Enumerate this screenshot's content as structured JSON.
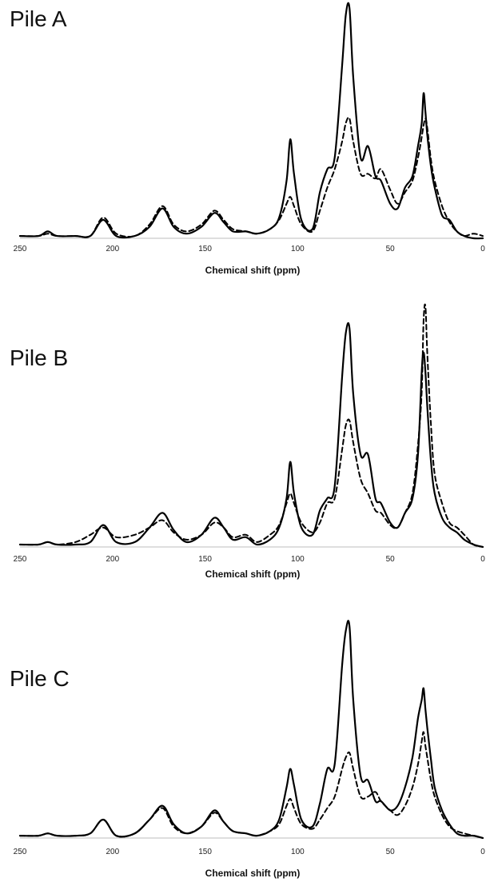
{
  "chart_data": [
    {
      "type": "line",
      "title": "Pile A",
      "xlabel": "Chemical shift (ppm)",
      "ylabel": "",
      "xlim": [
        250,
        0
      ],
      "x_reversed": true,
      "x_ticks": [
        "250",
        "200",
        "150",
        "100",
        "50",
        "0"
      ],
      "legend": "none",
      "grid": false,
      "series": [
        {
          "style": "solid",
          "x": [
            250,
            240,
            235,
            230,
            220,
            212,
            205,
            198,
            188,
            180,
            173,
            167,
            160,
            152,
            145,
            140,
            135,
            128,
            122,
            115,
            110,
            106,
            104,
            102,
            98,
            92,
            88,
            84,
            80,
            76,
            74,
            72,
            70,
            66,
            62,
            58,
            55,
            50,
            46,
            42,
            38,
            35,
            33,
            32,
            31,
            30,
            28,
            26,
            22,
            18,
            14,
            10,
            5,
            0
          ],
          "y": [
            0.01,
            0.01,
            0.03,
            0.01,
            0.01,
            0.01,
            0.08,
            0.01,
            0.01,
            0.05,
            0.13,
            0.05,
            0.02,
            0.05,
            0.11,
            0.07,
            0.03,
            0.03,
            0.02,
            0.04,
            0.09,
            0.25,
            0.43,
            0.28,
            0.08,
            0.04,
            0.2,
            0.3,
            0.35,
            0.75,
            0.97,
            1.0,
            0.7,
            0.35,
            0.4,
            0.27,
            0.25,
            0.15,
            0.13,
            0.22,
            0.27,
            0.4,
            0.5,
            0.63,
            0.55,
            0.45,
            0.31,
            0.22,
            0.1,
            0.08,
            0.03,
            0.01,
            0.0,
            0.0
          ]
        },
        {
          "style": "dashed",
          "x": [
            250,
            240,
            235,
            230,
            220,
            212,
            205,
            198,
            188,
            180,
            173,
            167,
            160,
            152,
            145,
            140,
            135,
            128,
            122,
            115,
            110,
            106,
            104,
            102,
            98,
            92,
            88,
            84,
            80,
            76,
            74,
            72,
            70,
            66,
            62,
            58,
            55,
            50,
            46,
            42,
            38,
            35,
            33,
            32,
            31,
            30,
            28,
            26,
            22,
            18,
            14,
            10,
            5,
            0
          ],
          "y": [
            0.01,
            0.01,
            0.02,
            0.01,
            0.01,
            0.01,
            0.09,
            0.02,
            0.01,
            0.06,
            0.14,
            0.06,
            0.03,
            0.06,
            0.12,
            0.08,
            0.04,
            0.03,
            0.02,
            0.04,
            0.08,
            0.15,
            0.18,
            0.14,
            0.06,
            0.03,
            0.12,
            0.22,
            0.3,
            0.42,
            0.5,
            0.52,
            0.42,
            0.28,
            0.28,
            0.26,
            0.3,
            0.21,
            0.15,
            0.2,
            0.25,
            0.35,
            0.44,
            0.49,
            0.52,
            0.48,
            0.34,
            0.25,
            0.14,
            0.07,
            0.03,
            0.01,
            0.02,
            0.01
          ]
        }
      ]
    },
    {
      "type": "line",
      "title": "Pile B",
      "xlabel": "Chemical shift (ppm)",
      "ylabel": "",
      "xlim": [
        250,
        0
      ],
      "x_reversed": true,
      "x_ticks": [
        "250",
        "200",
        "150",
        "100",
        "50",
        "0"
      ],
      "legend": "none",
      "grid": false,
      "series": [
        {
          "style": "solid",
          "x": [
            250,
            240,
            235,
            230,
            220,
            212,
            205,
            198,
            188,
            180,
            173,
            167,
            160,
            152,
            145,
            140,
            135,
            128,
            122,
            115,
            110,
            106,
            104,
            102,
            98,
            92,
            88,
            84,
            80,
            76,
            74,
            72,
            70,
            66,
            62,
            58,
            55,
            50,
            46,
            42,
            38,
            35,
            33,
            32,
            31,
            30,
            28,
            26,
            22,
            18,
            14,
            10,
            5,
            0
          ],
          "y": [
            0.01,
            0.01,
            0.02,
            0.01,
            0.01,
            0.02,
            0.09,
            0.02,
            0.02,
            0.08,
            0.14,
            0.07,
            0.02,
            0.05,
            0.12,
            0.08,
            0.03,
            0.04,
            0.01,
            0.03,
            0.08,
            0.2,
            0.35,
            0.22,
            0.08,
            0.05,
            0.15,
            0.2,
            0.25,
            0.7,
            0.88,
            0.9,
            0.63,
            0.38,
            0.38,
            0.2,
            0.18,
            0.1,
            0.08,
            0.14,
            0.2,
            0.38,
            0.72,
            0.8,
            0.72,
            0.58,
            0.35,
            0.22,
            0.12,
            0.08,
            0.06,
            0.03,
            0.01,
            0.0
          ]
        },
        {
          "style": "dashed",
          "x": [
            250,
            240,
            235,
            230,
            220,
            212,
            205,
            198,
            188,
            180,
            173,
            167,
            160,
            152,
            145,
            140,
            135,
            128,
            122,
            115,
            110,
            106,
            104,
            102,
            98,
            92,
            88,
            84,
            80,
            76,
            74,
            72,
            70,
            66,
            62,
            58,
            55,
            50,
            46,
            42,
            38,
            35,
            33,
            32,
            31,
            30,
            28,
            26,
            22,
            18,
            14,
            10,
            5,
            0
          ],
          "y": [
            0.01,
            0.01,
            0.02,
            0.01,
            0.02,
            0.05,
            0.08,
            0.04,
            0.05,
            0.08,
            0.11,
            0.06,
            0.03,
            0.05,
            0.1,
            0.08,
            0.04,
            0.05,
            0.02,
            0.05,
            0.09,
            0.18,
            0.22,
            0.18,
            0.1,
            0.06,
            0.1,
            0.18,
            0.2,
            0.4,
            0.5,
            0.52,
            0.43,
            0.28,
            0.22,
            0.15,
            0.14,
            0.09,
            0.08,
            0.14,
            0.22,
            0.42,
            0.64,
            0.93,
            0.99,
            0.8,
            0.5,
            0.3,
            0.18,
            0.1,
            0.08,
            0.05,
            0.01,
            0.0
          ]
        }
      ]
    },
    {
      "type": "line",
      "title": "Pile C",
      "xlabel": "Chemical shift (ppm)",
      "ylabel": "",
      "xlim": [
        250,
        0
      ],
      "x_reversed": true,
      "x_ticks": [
        "250",
        "200",
        "150",
        "100",
        "50",
        "0"
      ],
      "legend": "none",
      "grid": false,
      "series": [
        {
          "style": "solid",
          "x": [
            250,
            240,
            235,
            230,
            220,
            212,
            205,
            198,
            188,
            180,
            173,
            167,
            160,
            152,
            145,
            140,
            135,
            128,
            122,
            115,
            110,
            106,
            104,
            102,
            98,
            92,
            88,
            84,
            80,
            76,
            74,
            72,
            70,
            66,
            62,
            58,
            55,
            50,
            46,
            42,
            38,
            35,
            33,
            32,
            31,
            30,
            28,
            26,
            22,
            18,
            14,
            10,
            5,
            0
          ],
          "y": [
            0.01,
            0.01,
            0.02,
            0.01,
            0.01,
            0.02,
            0.08,
            0.01,
            0.02,
            0.08,
            0.14,
            0.06,
            0.02,
            0.05,
            0.12,
            0.07,
            0.03,
            0.02,
            0.01,
            0.03,
            0.08,
            0.22,
            0.3,
            0.23,
            0.08,
            0.05,
            0.15,
            0.3,
            0.32,
            0.75,
            0.9,
            0.92,
            0.6,
            0.27,
            0.25,
            0.16,
            0.16,
            0.12,
            0.14,
            0.22,
            0.35,
            0.52,
            0.6,
            0.65,
            0.56,
            0.48,
            0.34,
            0.22,
            0.12,
            0.06,
            0.02,
            0.01,
            0.01,
            0.0
          ]
        },
        {
          "style": "dashed",
          "x": [
            250,
            240,
            235,
            230,
            220,
            212,
            205,
            198,
            188,
            180,
            173,
            167,
            160,
            152,
            145,
            140,
            135,
            128,
            122,
            115,
            110,
            106,
            104,
            102,
            98,
            92,
            88,
            84,
            80,
            76,
            74,
            72,
            70,
            66,
            62,
            58,
            55,
            50,
            46,
            42,
            38,
            35,
            33,
            32,
            31,
            30,
            28,
            26,
            22,
            18,
            14,
            10,
            5,
            0
          ],
          "y": [
            0.01,
            0.01,
            0.02,
            0.01,
            0.01,
            0.02,
            0.08,
            0.01,
            0.02,
            0.08,
            0.13,
            0.05,
            0.02,
            0.05,
            0.11,
            0.07,
            0.03,
            0.02,
            0.01,
            0.03,
            0.06,
            0.14,
            0.17,
            0.13,
            0.06,
            0.04,
            0.08,
            0.13,
            0.18,
            0.3,
            0.35,
            0.37,
            0.3,
            0.18,
            0.18,
            0.2,
            0.16,
            0.12,
            0.1,
            0.14,
            0.22,
            0.32,
            0.42,
            0.46,
            0.4,
            0.35,
            0.25,
            0.18,
            0.1,
            0.05,
            0.03,
            0.02,
            0.01,
            0.0
          ]
        }
      ]
    }
  ]
}
